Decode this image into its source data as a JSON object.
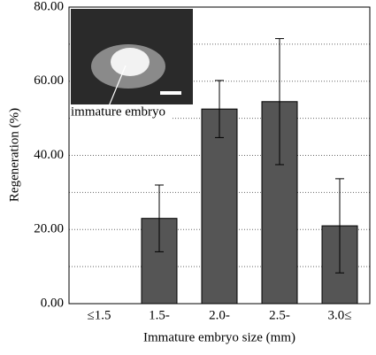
{
  "chart_data": {
    "type": "bar",
    "x_label": "Immature embryo size (mm)",
    "y_label": "Regeneration (%)",
    "categories": [
      "≤1.5",
      "1.5-",
      "2.0-",
      "2.5-",
      "3.0≤"
    ],
    "values": [
      0,
      23,
      52.5,
      54.5,
      21
    ],
    "errors": [
      null,
      9,
      7.7,
      17,
      12.7
    ],
    "color": "#555555",
    "ylim": [
      0,
      80
    ],
    "yticks": [
      {
        "value": 0,
        "label": "0.00"
      },
      {
        "value": 20,
        "label": "20.00"
      },
      {
        "value": 40,
        "label": "40.00"
      },
      {
        "value": 60,
        "label": "60.00"
      },
      {
        "value": 80,
        "label": "80.00"
      }
    ],
    "minor_yticks": [
      10,
      30,
      50,
      70
    ],
    "grid": true,
    "annotation": "immature embryo"
  }
}
